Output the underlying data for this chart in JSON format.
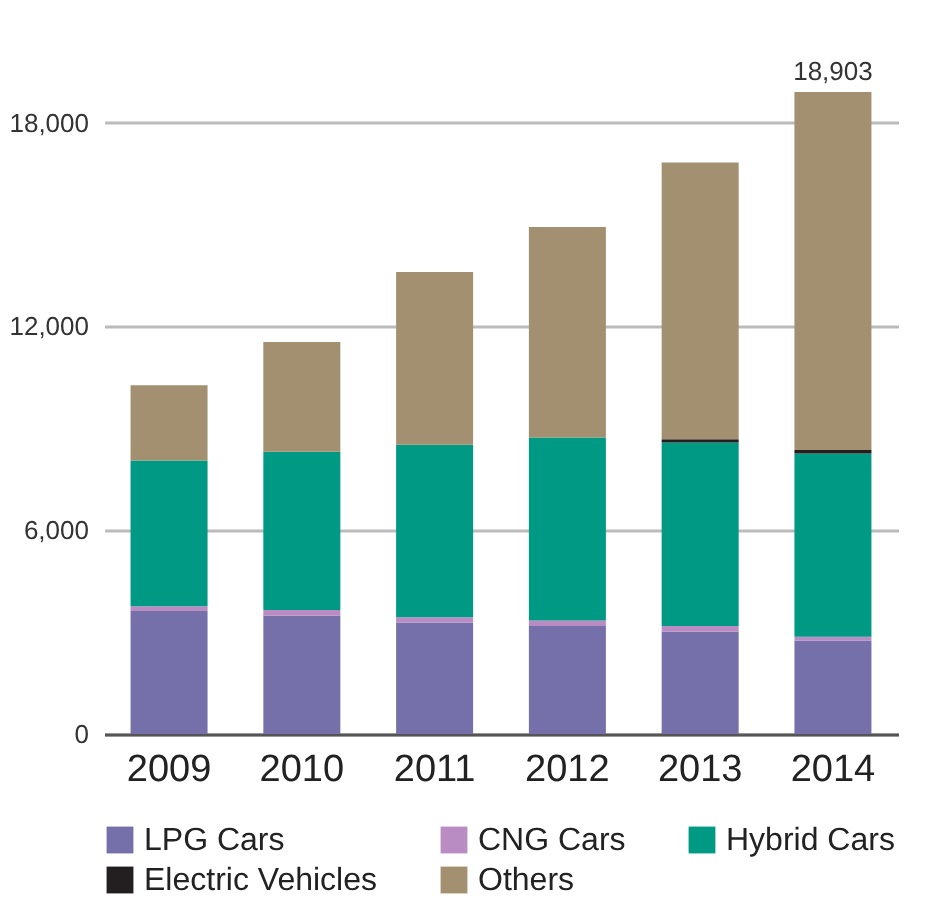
{
  "chart_data": {
    "type": "bar",
    "stacked": true,
    "categories": [
      "2009",
      "2010",
      "2011",
      "2012",
      "2013",
      "2014"
    ],
    "series": [
      {
        "name": "LPG Cars",
        "color": "#7670aa",
        "values": [
          3620,
          3490,
          3280,
          3180,
          3020,
          2750
        ]
      },
      {
        "name": "CNG Cars",
        "color": "#b98dc4",
        "values": [
          140,
          160,
          160,
          160,
          160,
          110
        ]
      },
      {
        "name": "Hybrid Cars",
        "color": "#009a84",
        "values": [
          4290,
          4660,
          5080,
          5390,
          5400,
          5400
        ]
      },
      {
        "name": "Electric Vehicles",
        "color": "#231f20",
        "values": [
          0,
          0,
          0,
          0,
          100,
          100
        ]
      },
      {
        "name": "Others",
        "color": "#a39071",
        "values": [
          2220,
          3230,
          5080,
          6200,
          8150,
          10543
        ]
      }
    ],
    "totals": [
      null,
      null,
      null,
      null,
      null,
      "18,903"
    ],
    "ylim": [
      0,
      18903
    ],
    "yticks": [
      {
        "value": 0,
        "label": "0"
      },
      {
        "value": 6000,
        "label": "6,000"
      },
      {
        "value": 12000,
        "label": "12,000"
      },
      {
        "value": 18000,
        "label": "18,000"
      }
    ],
    "grid": "y",
    "legend": "bottom"
  }
}
